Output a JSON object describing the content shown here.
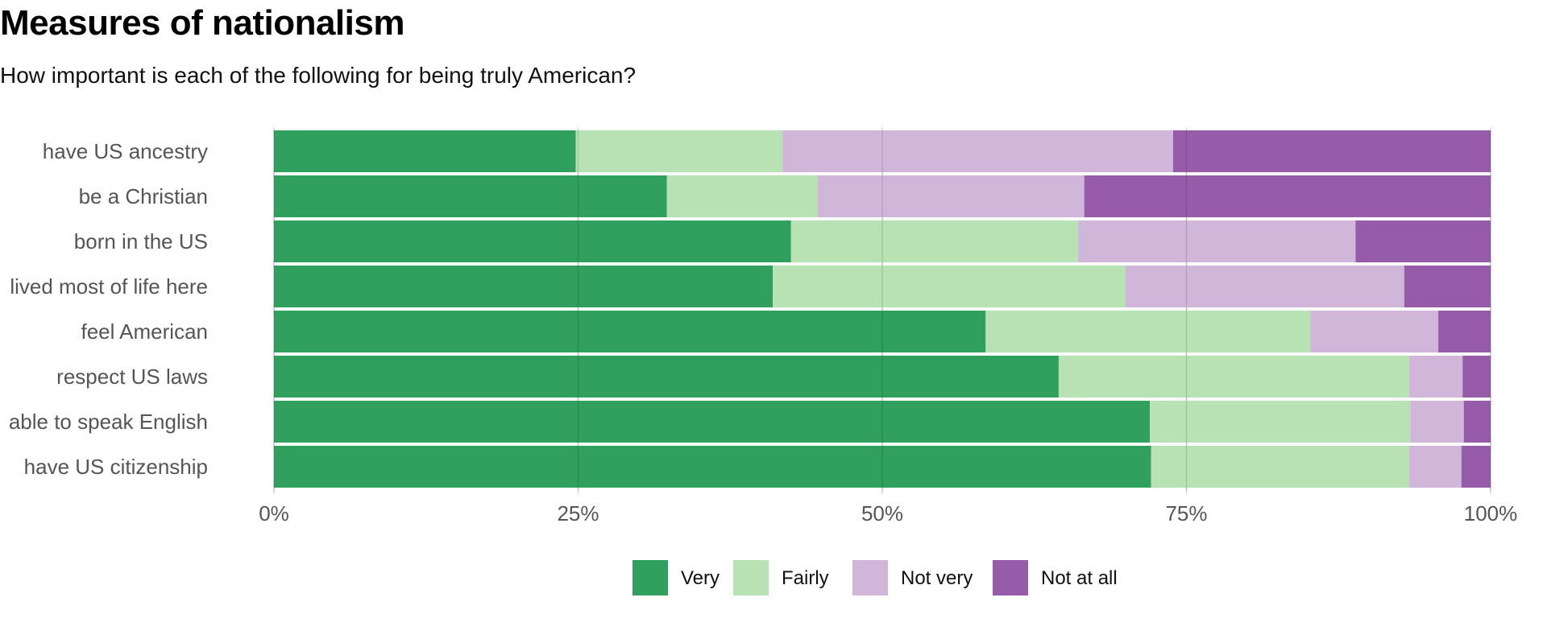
{
  "chart_data": {
    "type": "bar",
    "orientation": "horizontal",
    "stacked": true,
    "title": "Measures of nationalism",
    "subtitle": "How important is each of the following for being truly American?",
    "categories": [
      "have US ancestry",
      "be a Christian",
      "born in the US",
      "lived most of life here",
      "feel American",
      "respect US laws",
      "able to speak English",
      "have US citizenship"
    ],
    "series": [
      {
        "name": "Very",
        "color": "#31a05f",
        "values": [
          24.8,
          32.3,
          42.5,
          41.0,
          58.5,
          64.5,
          72.0,
          72.1
        ]
      },
      {
        "name": "Fairly",
        "color": "#b8e2b3",
        "values": [
          17.0,
          12.4,
          23.6,
          29.0,
          26.7,
          28.8,
          21.4,
          21.2
        ]
      },
      {
        "name": "Not very",
        "color": "#d0b6d9",
        "values": [
          32.1,
          21.9,
          22.8,
          22.9,
          10.5,
          4.4,
          4.4,
          4.3
        ]
      },
      {
        "name": "Not at all",
        "color": "#965ca9",
        "values": [
          26.1,
          33.4,
          11.1,
          7.1,
          4.3,
          2.3,
          2.2,
          2.4
        ]
      }
    ],
    "x_ticks": [
      "0%",
      "25%",
      "50%",
      "75%",
      "100%"
    ],
    "xlim": [
      0,
      100
    ],
    "grid": true,
    "legend": "bottom"
  }
}
